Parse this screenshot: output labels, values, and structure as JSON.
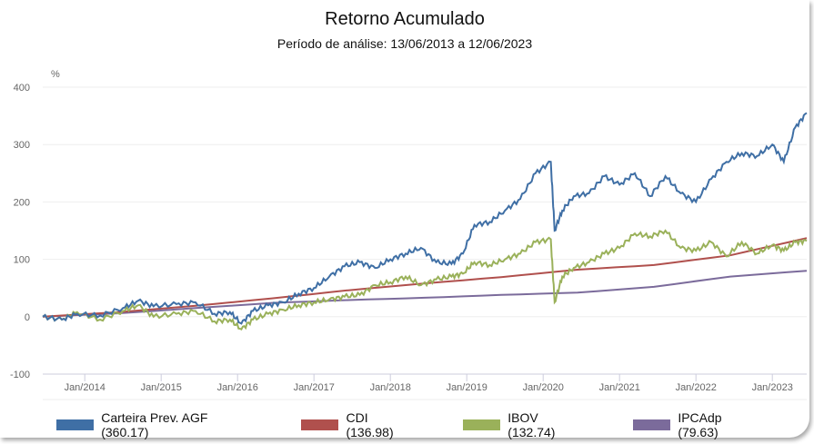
{
  "chart_data": {
    "type": "line",
    "title": "Retorno Acumulado",
    "subtitle": "Período de análise: 13/06/2013 a 12/06/2023",
    "ylabel": "%",
    "ylim": [
      -100,
      400
    ],
    "yticks": [
      400,
      300,
      200,
      100,
      0,
      -100
    ],
    "xlim": [
      2013.45,
      2023.45
    ],
    "xticks": [
      {
        "label": "Jan/2014",
        "x": 2014
      },
      {
        "label": "Jan/2015",
        "x": 2015
      },
      {
        "label": "Jan/2016",
        "x": 2016
      },
      {
        "label": "Jan/2017",
        "x": 2017
      },
      {
        "label": "Jan/2018",
        "x": 2018
      },
      {
        "label": "Jan/2019",
        "x": 2019
      },
      {
        "label": "Jan/2020",
        "x": 2020
      },
      {
        "label": "Jan/2021",
        "x": 2021
      },
      {
        "label": "Jan/2022",
        "x": 2022
      },
      {
        "label": "Jan/2023",
        "x": 2023
      }
    ],
    "grid": true,
    "legend_placement": "bottom",
    "series": [
      {
        "name": "Carteira Prev. AGF (360.17)",
        "color": "#3f6fa5",
        "x": [
          2013.45,
          2013.7,
          2013.9,
          2014.2,
          2014.5,
          2014.7,
          2014.9,
          2015.2,
          2015.45,
          2015.7,
          2015.9,
          2016.05,
          2016.2,
          2016.4,
          2016.6,
          2016.8,
          2017.0,
          2017.2,
          2017.4,
          2017.6,
          2017.8,
          2018.0,
          2018.2,
          2018.4,
          2018.6,
          2018.8,
          2018.95,
          2019.1,
          2019.3,
          2019.5,
          2019.7,
          2019.9,
          2020.1,
          2020.15,
          2020.25,
          2020.4,
          2020.6,
          2020.8,
          2021.0,
          2021.2,
          2021.4,
          2021.6,
          2021.8,
          2022.0,
          2022.2,
          2022.4,
          2022.6,
          2022.8,
          2023.0,
          2023.15,
          2023.3,
          2023.45
        ],
        "values": [
          0,
          -5,
          5,
          2,
          15,
          28,
          18,
          22,
          25,
          5,
          8,
          -12,
          10,
          20,
          25,
          40,
          50,
          70,
          88,
          95,
          85,
          100,
          110,
          120,
          95,
          92,
          110,
          160,
          165,
          185,
          205,
          250,
          270,
          150,
          185,
          210,
          215,
          245,
          230,
          250,
          210,
          245,
          215,
          200,
          240,
          270,
          285,
          280,
          300,
          270,
          330,
          355
        ]
      },
      {
        "name": "CDI (136.98)",
        "color": "#b0504d",
        "x": [
          2013.45,
          2014.45,
          2015.45,
          2016.45,
          2017.45,
          2018.45,
          2019.45,
          2020.45,
          2021.45,
          2022.45,
          2023.45
        ],
        "values": [
          0,
          8,
          19,
          32,
          46,
          58,
          69,
          82,
          90,
          107,
          137
        ]
      },
      {
        "name": "IBOV (132.74)",
        "color": "#9ab15a",
        "x": [
          2013.45,
          2013.7,
          2013.9,
          2014.2,
          2014.5,
          2014.7,
          2014.9,
          2015.2,
          2015.45,
          2015.7,
          2015.9,
          2016.05,
          2016.2,
          2016.4,
          2016.6,
          2016.8,
          2017.0,
          2017.2,
          2017.4,
          2017.6,
          2017.8,
          2018.0,
          2018.2,
          2018.4,
          2018.6,
          2018.8,
          2018.95,
          2019.1,
          2019.3,
          2019.5,
          2019.7,
          2019.9,
          2020.1,
          2020.15,
          2020.25,
          2020.4,
          2020.6,
          2020.8,
          2021.0,
          2021.2,
          2021.4,
          2021.6,
          2021.8,
          2022.0,
          2022.2,
          2022.4,
          2022.6,
          2022.8,
          2023.0,
          2023.15,
          2023.3,
          2023.45
        ],
        "values": [
          0,
          -5,
          8,
          -5,
          10,
          20,
          0,
          5,
          10,
          -8,
          -5,
          -22,
          -5,
          5,
          12,
          20,
          25,
          30,
          35,
          38,
          55,
          60,
          70,
          55,
          65,
          70,
          75,
          95,
          90,
          100,
          110,
          130,
          135,
          25,
          70,
          85,
          95,
          110,
          120,
          145,
          140,
          150,
          120,
          115,
          130,
          105,
          130,
          110,
          125,
          115,
          130,
          132
        ]
      },
      {
        "name": "IPCAdp (79.63)",
        "color": "#7b6b9b",
        "x": [
          2013.45,
          2014.45,
          2015.45,
          2016.45,
          2017.45,
          2018.45,
          2019.45,
          2020.45,
          2021.45,
          2022.45,
          2023.45
        ],
        "values": [
          0,
          6,
          15,
          24,
          29,
          33,
          38,
          42,
          52,
          70,
          80
        ]
      }
    ]
  }
}
